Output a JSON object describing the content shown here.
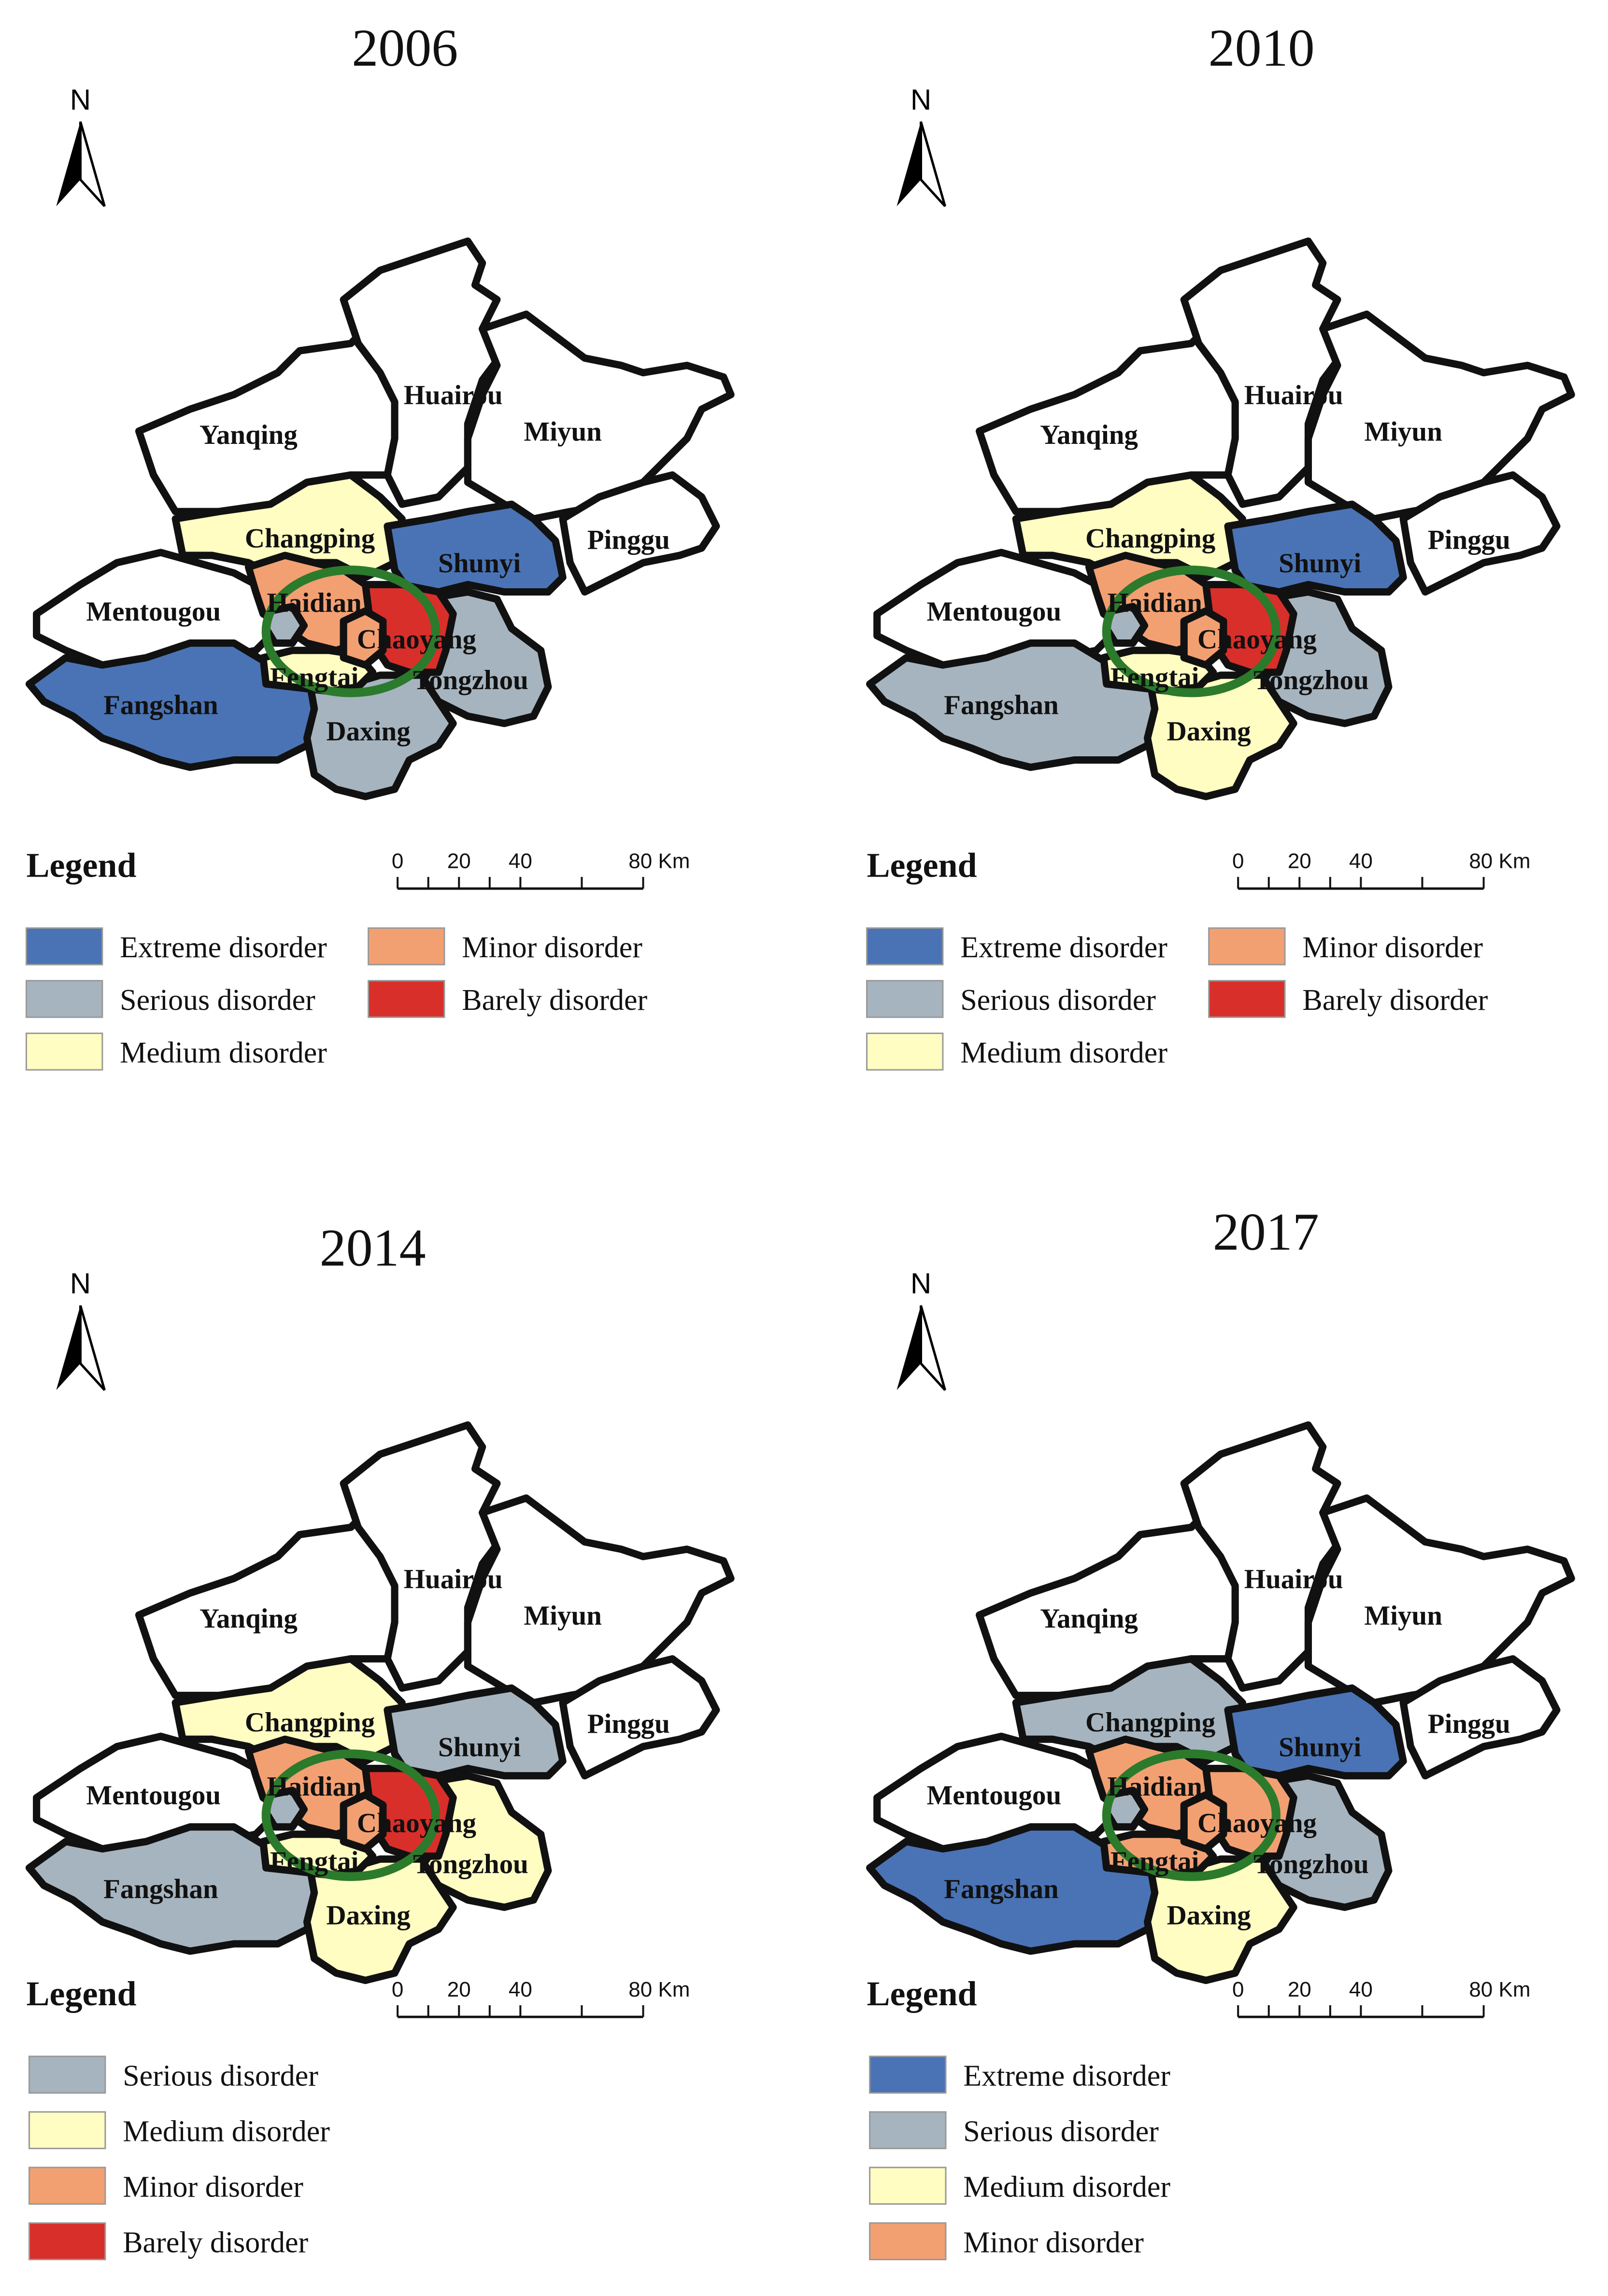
{
  "colors": {
    "extreme": "#4a73b5",
    "serious": "#a6b4bf",
    "medium": "#fffdc2",
    "minor": "#f2a072",
    "barely": "#d92f2a",
    "none": "#ffffff"
  },
  "north_letter": "N",
  "legend_title": "Legend",
  "scale": {
    "ticks": [
      "0",
      "20",
      "40",
      "80 Km"
    ]
  },
  "district_names": {
    "yanqing": "Yanqing",
    "huairou": "Huairou",
    "miyun": "Miyun",
    "pinggu": "Pinggu",
    "changping": "Changping",
    "shunyi": "Shunyi",
    "mentougou": "Mentougou",
    "haidian": "Haidian",
    "chaoyang": "Chaoyang",
    "fengtai": "Fengtai",
    "tongzhou": "Tongzhou",
    "fangshan": "Fangshan",
    "daxing": "Daxing"
  },
  "maps": [
    {
      "year": "2006",
      "classes": {
        "yanqing": "none",
        "huairou": "none",
        "miyun": "none",
        "pinggu": "none",
        "mentougou": "none",
        "changping": "medium",
        "shunyi": "extreme",
        "haidian": "minor",
        "chaoyang": "barely",
        "fengtai": "medium",
        "tongzhou": "serious",
        "fangshan": "extreme",
        "daxing": "serious",
        "core": "minor",
        "shijingshan": "serious"
      },
      "legend": [
        {
          "label": "Extreme disorder",
          "color": "extreme"
        },
        {
          "label": "Serious disorder",
          "color": "serious"
        },
        {
          "label": "Medium disorder",
          "color": "medium"
        },
        {
          "label": "Minor disorder",
          "color": "minor"
        },
        {
          "label": "Barely disorder",
          "color": "barely"
        }
      ]
    },
    {
      "year": "2010",
      "classes": {
        "yanqing": "none",
        "huairou": "none",
        "miyun": "none",
        "pinggu": "none",
        "mentougou": "none",
        "changping": "medium",
        "shunyi": "extreme",
        "haidian": "minor",
        "chaoyang": "barely",
        "fengtai": "medium",
        "tongzhou": "serious",
        "fangshan": "serious",
        "daxing": "medium",
        "core": "minor",
        "shijingshan": "serious"
      },
      "legend": [
        {
          "label": "Extreme disorder",
          "color": "extreme"
        },
        {
          "label": "Serious disorder",
          "color": "serious"
        },
        {
          "label": "Medium disorder",
          "color": "medium"
        },
        {
          "label": "Minor disorder",
          "color": "minor"
        },
        {
          "label": "Barely disorder",
          "color": "barely"
        }
      ]
    },
    {
      "year": "2014",
      "classes": {
        "yanqing": "none",
        "huairou": "none",
        "miyun": "none",
        "pinggu": "none",
        "mentougou": "none",
        "changping": "medium",
        "shunyi": "serious",
        "haidian": "minor",
        "chaoyang": "barely",
        "fengtai": "medium",
        "tongzhou": "medium",
        "fangshan": "serious",
        "daxing": "medium",
        "core": "minor",
        "shijingshan": "serious"
      },
      "legend": [
        {
          "label": "Serious disorder",
          "color": "serious"
        },
        {
          "label": "Medium disorder",
          "color": "medium"
        },
        {
          "label": "Minor disorder",
          "color": "minor"
        },
        {
          "label": "Barely disorder",
          "color": "barely"
        }
      ]
    },
    {
      "year": "2017",
      "classes": {
        "yanqing": "none",
        "huairou": "none",
        "miyun": "none",
        "pinggu": "none",
        "mentougou": "none",
        "changping": "serious",
        "shunyi": "extreme",
        "haidian": "minor",
        "chaoyang": "minor",
        "fengtai": "minor",
        "tongzhou": "serious",
        "fangshan": "extreme",
        "daxing": "medium",
        "core": "minor",
        "shijingshan": "serious"
      },
      "legend": [
        {
          "label": "Extreme disorder",
          "color": "extreme"
        },
        {
          "label": "Serious disorder",
          "color": "serious"
        },
        {
          "label": "Medium disorder",
          "color": "medium"
        },
        {
          "label": "Minor disorder",
          "color": "minor"
        }
      ]
    }
  ]
}
